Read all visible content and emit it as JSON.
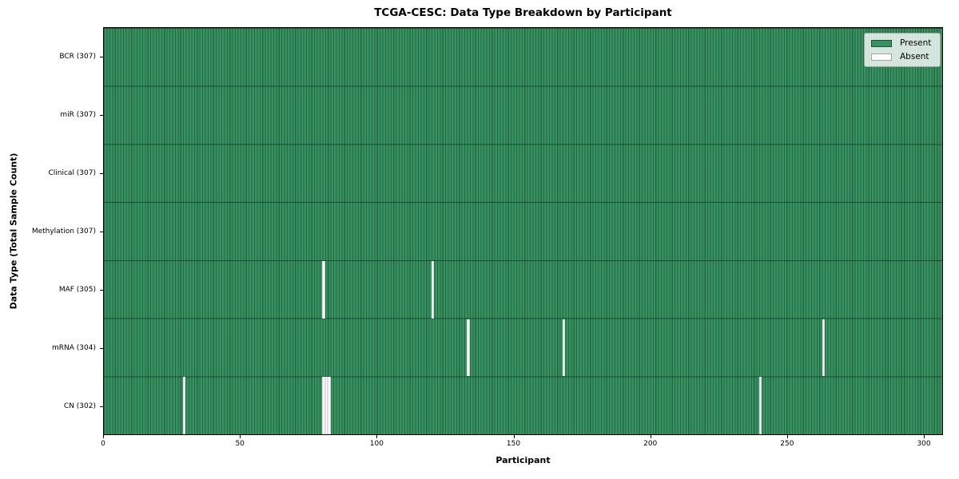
{
  "title": "TCGA-CESC: Data Type Breakdown by Participant",
  "axes": {
    "xlabel": "Participant",
    "ylabel": "Data Type (Total Sample Count)"
  },
  "legend": {
    "entries": [
      {
        "label": "Present",
        "color": "#369361"
      },
      {
        "label": "Absent",
        "color": "#ffffff"
      }
    ]
  },
  "colors": {
    "present": "#369361",
    "absent": "#ffffff",
    "cell_edge": "rgba(0,0,0,0.30)"
  },
  "chart_data": {
    "type": "heatmap",
    "title": "TCGA-CESC: Data Type Breakdown by Participant",
    "xlabel": "Participant",
    "ylabel": "Data Type (Total Sample Count)",
    "n_participants": 307,
    "x_ticks": [
      0,
      50,
      100,
      150,
      200,
      250,
      300
    ],
    "xlim": [
      0,
      307
    ],
    "grid": false,
    "legend_position": "upper right",
    "legend": [
      {
        "label": "Present",
        "value": "present"
      },
      {
        "label": "Absent",
        "value": "absent"
      }
    ],
    "rows": [
      {
        "data_type": "BCR",
        "label": "BCR (307)",
        "count": 307,
        "absent_participants": []
      },
      {
        "data_type": "miR",
        "label": "miR (307)",
        "count": 307,
        "absent_participants": []
      },
      {
        "data_type": "Clinical",
        "label": "Clinical (307)",
        "count": 307,
        "absent_participants": []
      },
      {
        "data_type": "Methylation",
        "label": "Methylation (307)",
        "count": 307,
        "absent_participants": []
      },
      {
        "data_type": "MAF",
        "label": "MAF (305)",
        "count": 305,
        "absent_participants": [
          80,
          120
        ]
      },
      {
        "data_type": "mRNA",
        "label": "mRNA (304)",
        "count": 304,
        "absent_participants": [
          133,
          168,
          263
        ]
      },
      {
        "data_type": "CN",
        "label": "CN (302)",
        "count": 302,
        "absent_participants": [
          29,
          80,
          81,
          82,
          240
        ]
      }
    ]
  }
}
